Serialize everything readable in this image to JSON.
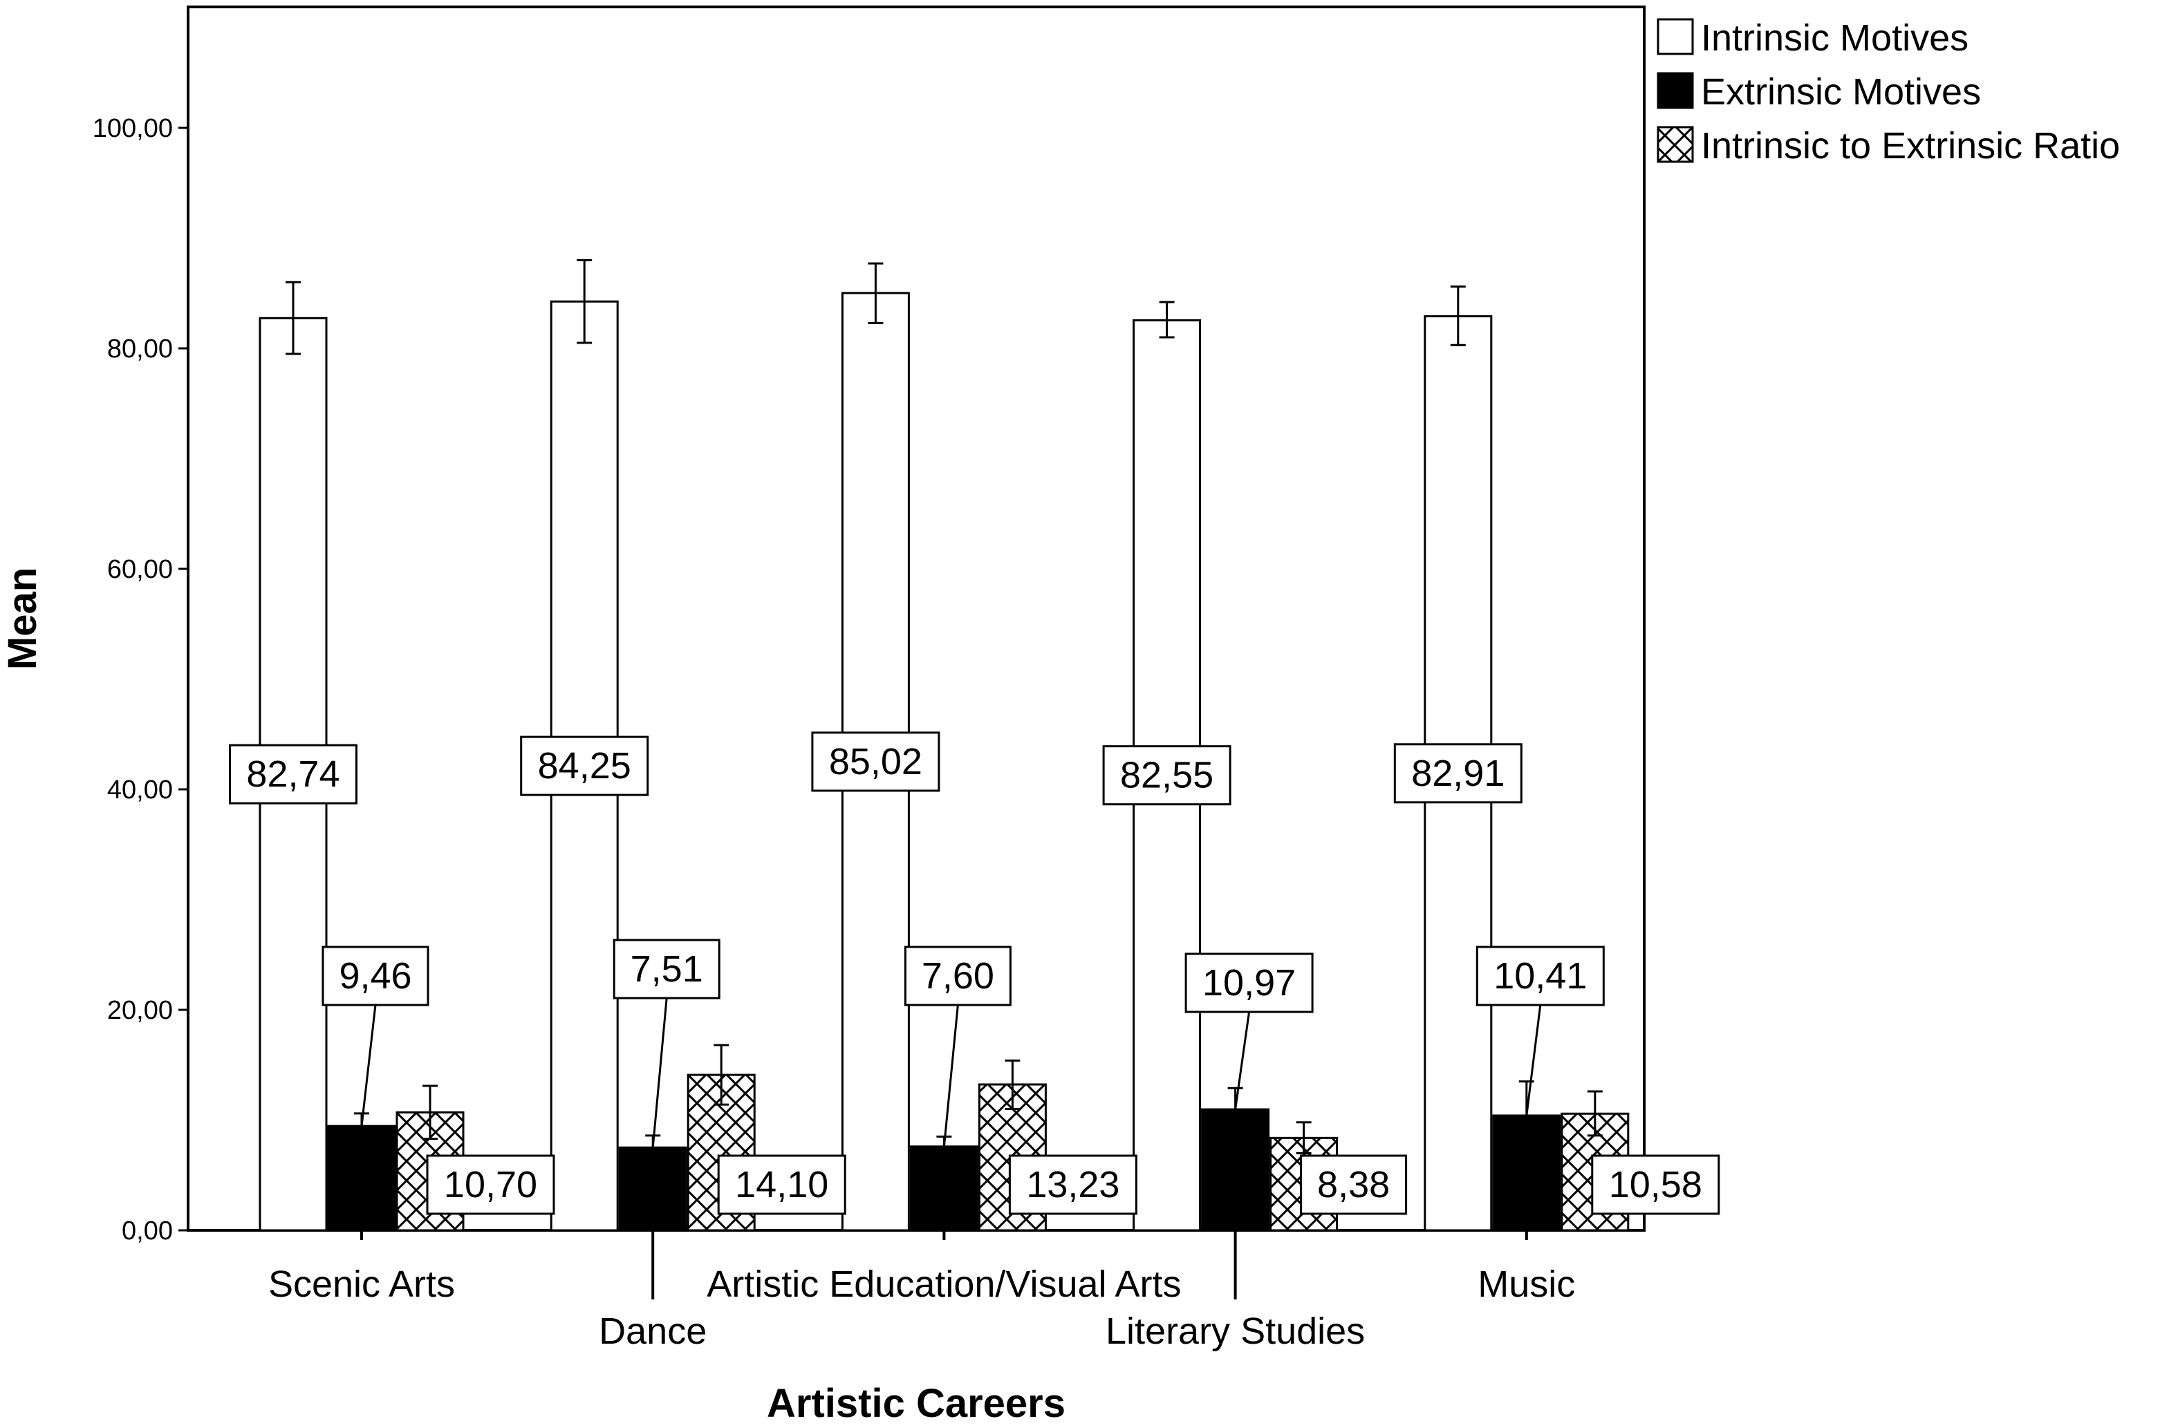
{
  "chart_data": {
    "type": "bar",
    "xlabel": "Artistic Careers",
    "ylabel": "Mean",
    "ylim": [
      0,
      110
    ],
    "yticks": [
      "0,00",
      "20,00",
      "40,00",
      "60,00",
      "80,00",
      "100,00"
    ],
    "ytick_values": [
      0,
      20,
      40,
      60,
      80,
      100
    ],
    "grid": false,
    "legend_position": "top-right, outside plot",
    "categories": [
      "Scenic Arts",
      "Dance",
      "Artistic Education/Visual Arts",
      "Literary Studies",
      "Music"
    ],
    "series": [
      {
        "name": "Intrinsic Motives",
        "fill": "white",
        "values": [
          82.74,
          84.25,
          85.02,
          82.55,
          82.91
        ],
        "labels": [
          "82,74",
          "84,25",
          "85,02",
          "82,55",
          "82,91"
        ],
        "error_low": [
          79.5,
          80.5,
          82.3,
          81.0,
          80.3
        ],
        "error_high": [
          86.0,
          88.0,
          87.7,
          84.2,
          85.6
        ]
      },
      {
        "name": "Extrinsic Motives",
        "fill": "black",
        "values": [
          9.46,
          7.51,
          7.6,
          10.97,
          10.41
        ],
        "labels": [
          "9,46",
          "7,51",
          "7,60",
          "10,97",
          "10,41"
        ],
        "error_low": [
          8.2,
          6.5,
          6.7,
          9.0,
          7.4
        ],
        "error_high": [
          10.6,
          8.6,
          8.5,
          12.9,
          13.5
        ]
      },
      {
        "name": "Intrinsic to Extrinsic Ratio",
        "fill": "crosshatch",
        "values": [
          10.7,
          14.1,
          13.23,
          8.38,
          10.58
        ],
        "labels": [
          "10,70",
          "14,10",
          "13,23",
          "8,38",
          "10,58"
        ],
        "error_low": [
          8.3,
          11.4,
          11.0,
          7.0,
          8.6
        ],
        "error_high": [
          13.1,
          16.8,
          15.4,
          9.8,
          12.6
        ]
      }
    ]
  },
  "colors": {
    "line": "#000000",
    "background": "#ffffff"
  }
}
